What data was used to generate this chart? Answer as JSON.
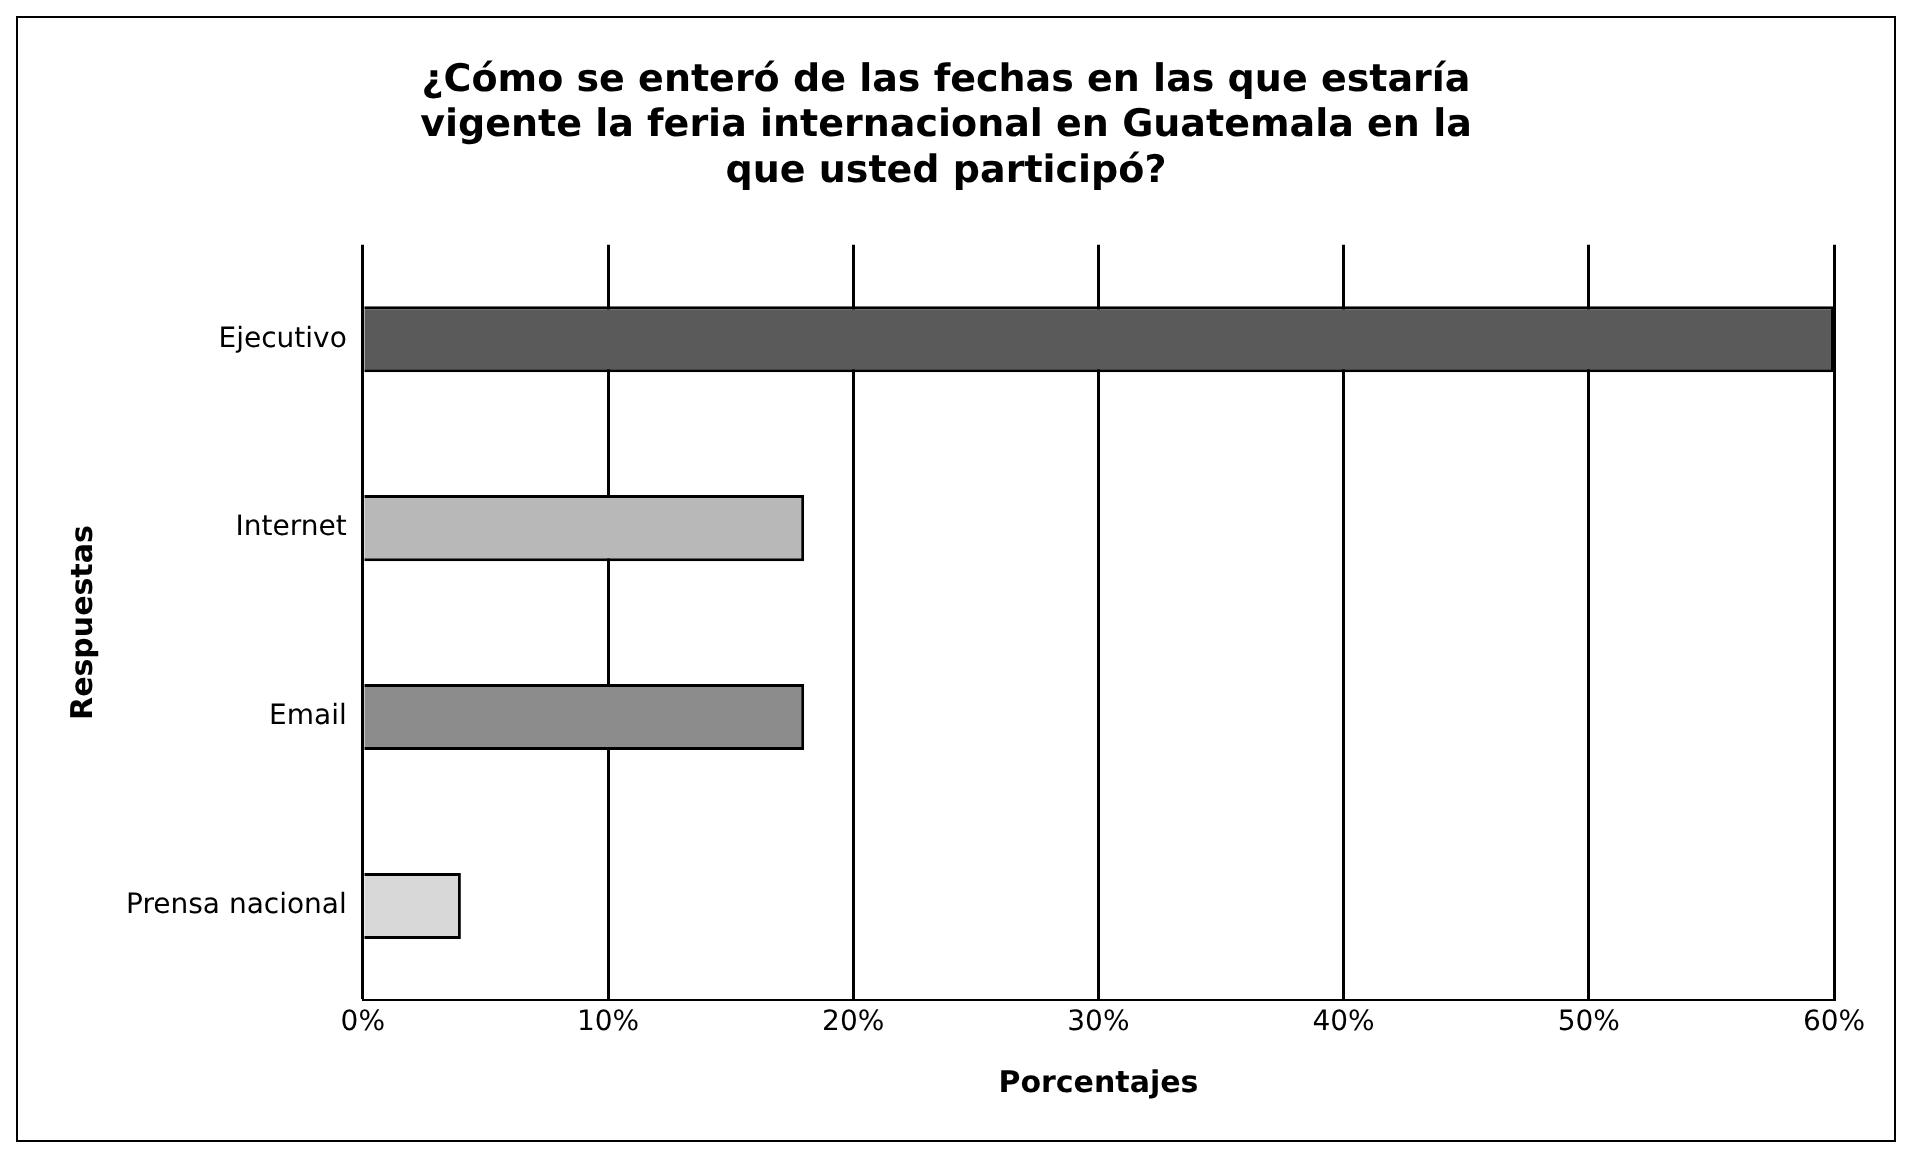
{
  "chart_data": {
    "type": "bar",
    "orientation": "horizontal",
    "title": "¿Cómo se enteró de las fechas en las que estaría vigente la feria internacional en Guatemala en la que usted participó?",
    "xlabel": "Porcentajes",
    "ylabel": "Respuestas",
    "categories": [
      "Ejecutivo",
      "Internet",
      "Email",
      "Prensa nacional"
    ],
    "values": [
      60,
      18,
      18,
      4
    ],
    "colors": [
      "#5a5a5a",
      "#b8b8b8",
      "#8c8c8c",
      "#d8d8d8"
    ],
    "xlim": [
      0,
      60
    ],
    "xticks": [
      {
        "value": 0,
        "label": "0%"
      },
      {
        "value": 10,
        "label": "10%"
      },
      {
        "value": 20,
        "label": "20%"
      },
      {
        "value": 30,
        "label": "30%"
      },
      {
        "value": 40,
        "label": "40%"
      },
      {
        "value": 50,
        "label": "50%"
      },
      {
        "value": 60,
        "label": "60%"
      }
    ],
    "grid": "x",
    "legend": false
  }
}
